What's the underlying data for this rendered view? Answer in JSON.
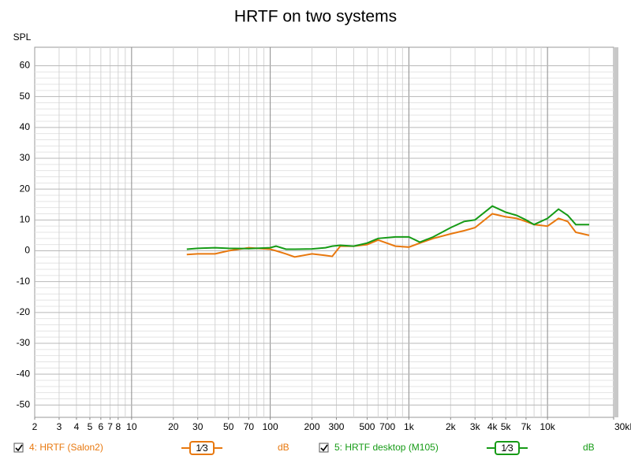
{
  "chart_data": {
    "type": "line",
    "title": "HRTF on two systems",
    "ylabel": "SPL",
    "x": [
      25,
      30,
      40,
      50,
      70,
      100,
      110,
      130,
      150,
      200,
      250,
      280,
      320,
      400,
      500,
      600,
      800,
      1000,
      1200,
      1500,
      2000,
      2500,
      3000,
      4000,
      5000,
      6000,
      7000,
      8000,
      10000,
      12000,
      14000,
      16000,
      20000
    ],
    "series": [
      {
        "name": "4: HRTF (Salon2)",
        "color": "#e8780e",
        "smoothing": "1⁄3",
        "unit": "dB",
        "values": [
          -1.2,
          -1,
          -1,
          0,
          1,
          0.5,
          0,
          -1,
          -2,
          -1,
          -1.5,
          -1.8,
          1.5,
          1.5,
          2,
          3.5,
          1.5,
          1.2,
          2.5,
          4,
          5.5,
          6.5,
          7.5,
          12,
          11,
          10.5,
          9.5,
          8.5,
          8,
          10.5,
          9.5,
          6,
          5
        ]
      },
      {
        "name": "5: HRTF desktop (M105)",
        "color": "#169b16",
        "smoothing": "1⁄3",
        "unit": "dB",
        "values": [
          0.5,
          0.8,
          1,
          0.8,
          0.7,
          1,
          1.5,
          0.5,
          0.5,
          0.6,
          1,
          1.5,
          1.8,
          1.5,
          2.5,
          4,
          4.5,
          4.5,
          2.8,
          4.5,
          7.5,
          9.5,
          10,
          14.5,
          12.5,
          11.5,
          10,
          8.5,
          10.5,
          13.5,
          11.5,
          8.5,
          8.5
        ]
      }
    ],
    "xlim": [
      2,
      30000
    ],
    "ylim": [
      -54,
      66
    ],
    "xscale": "log",
    "grid": true,
    "xticks": [
      2,
      3,
      4,
      5,
      6,
      7,
      8,
      10,
      20,
      30,
      50,
      70,
      100,
      200,
      300,
      500,
      700,
      {
        "value": 1000,
        "label": "1k"
      },
      {
        "value": 2000,
        "label": "2k"
      },
      {
        "value": 3000,
        "label": "3k"
      },
      {
        "value": 4000,
        "label": "4k"
      },
      {
        "value": 5000,
        "label": "5k"
      },
      {
        "value": 7000,
        "label": "7k"
      },
      {
        "value": 10000,
        "label": "10k"
      },
      {
        "value": 30000,
        "label": "30kHz"
      }
    ],
    "yticks": [
      -50,
      -40,
      -30,
      -20,
      -10,
      0,
      10,
      20,
      30,
      40,
      50,
      60
    ]
  }
}
